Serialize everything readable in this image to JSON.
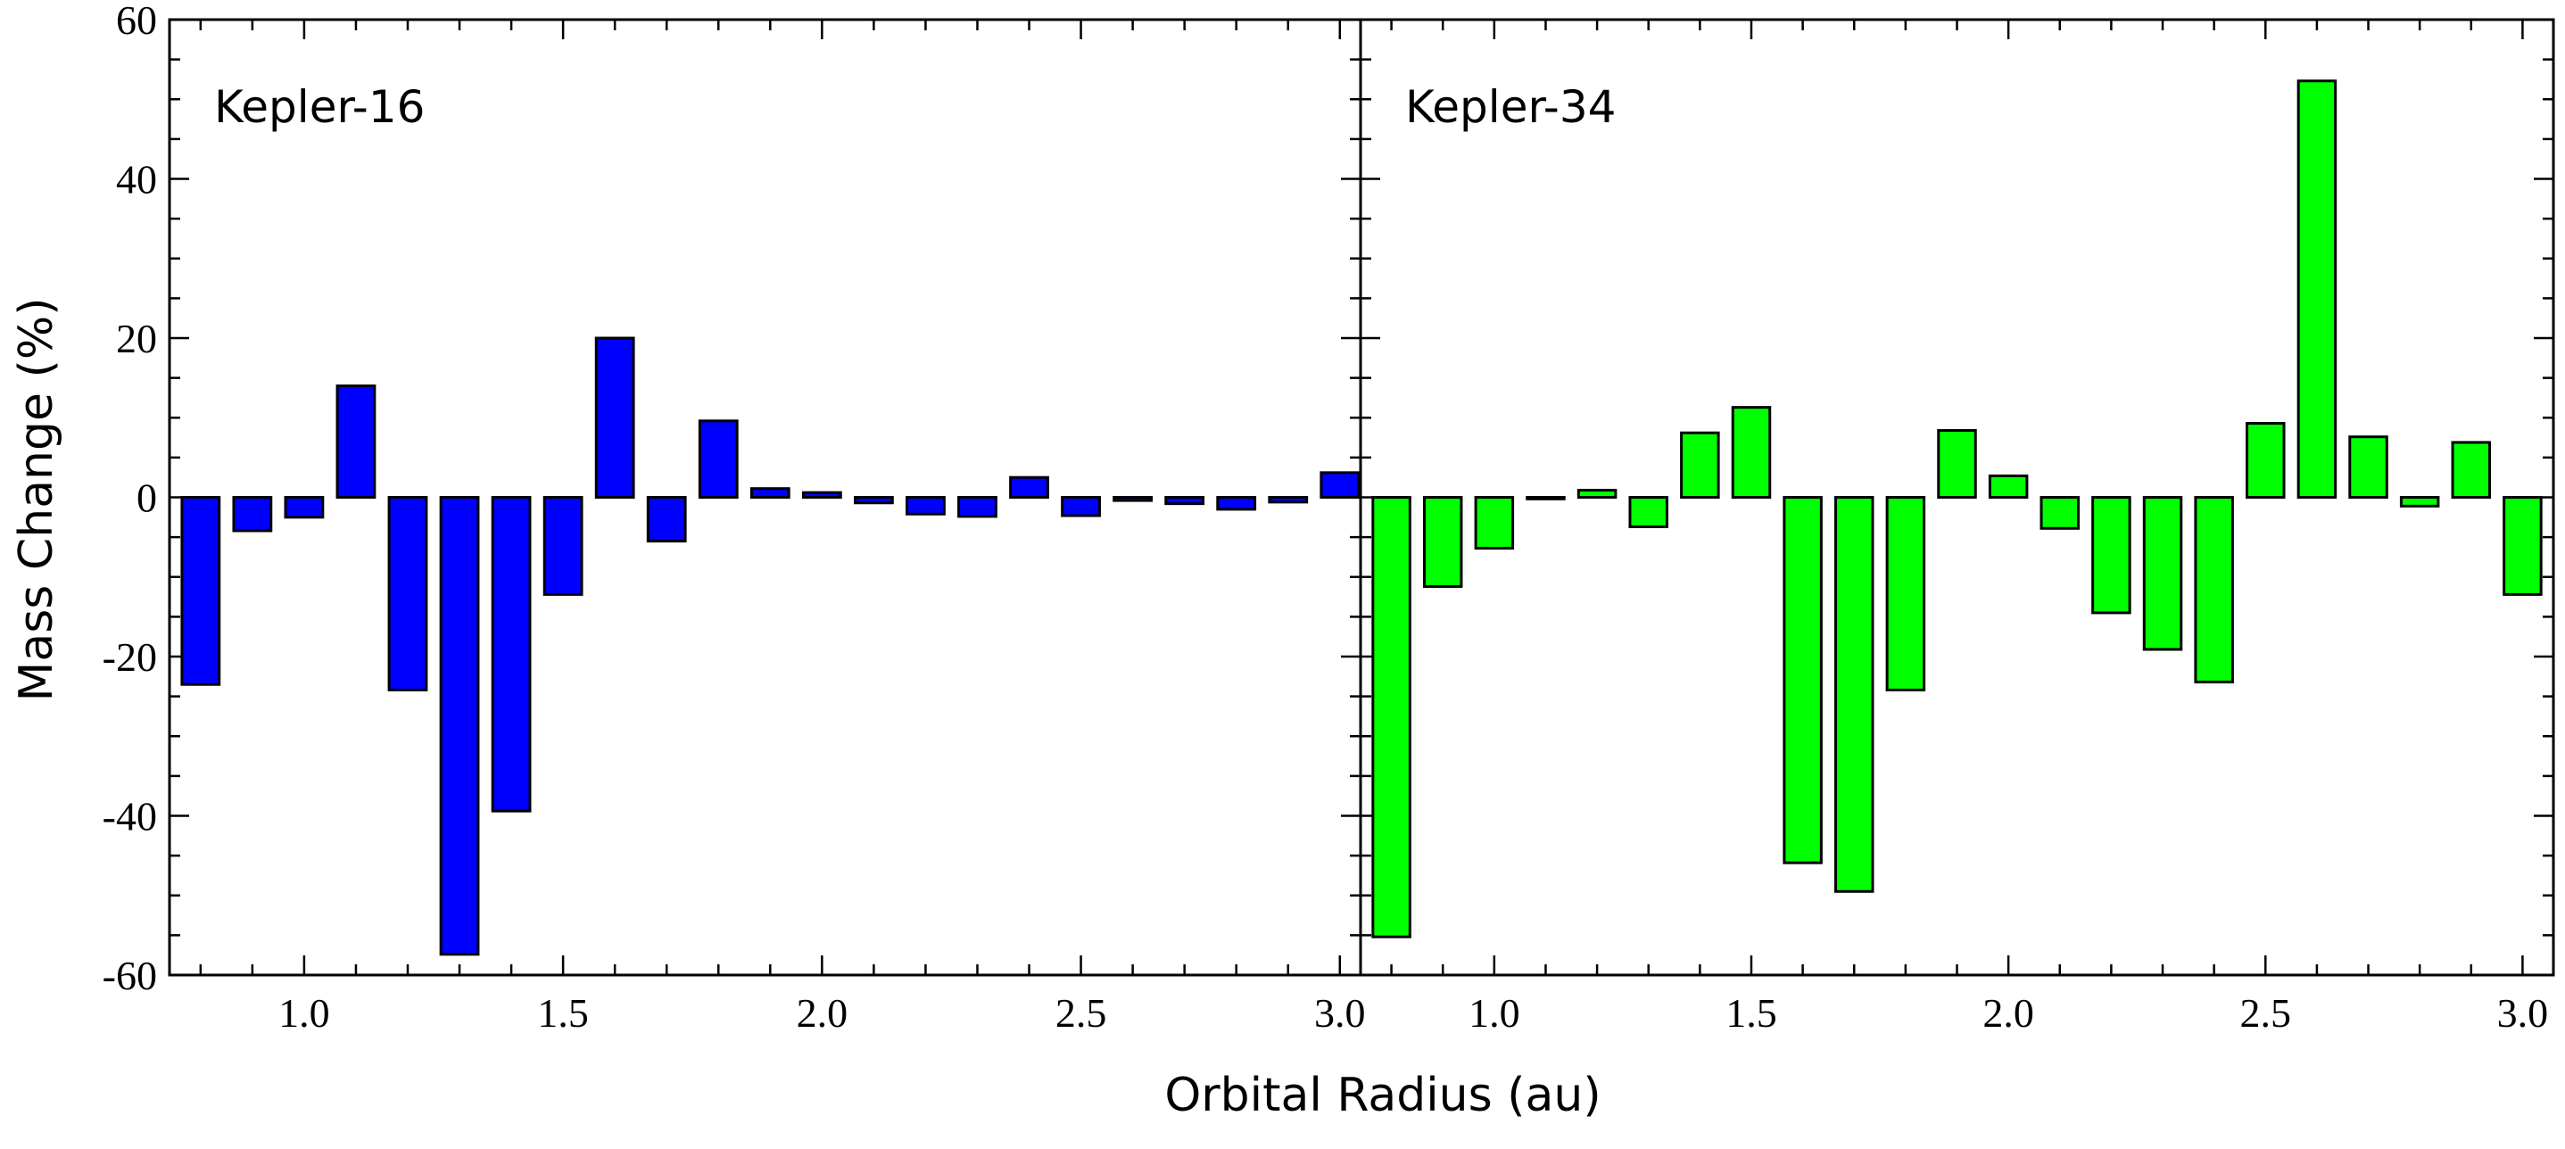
{
  "chart_data": [
    {
      "type": "bar",
      "title": "Kepler-16",
      "xlabel": "Orbital Radius (au)",
      "ylabel": "Mass Change (%)",
      "xlim": [
        0.74,
        3.04
      ],
      "ylim": [
        -60,
        60
      ],
      "xticks": [
        "1.0",
        "1.5",
        "2.0",
        "2.5",
        "3.0"
      ],
      "yticks": [
        "60",
        "40",
        "20",
        "0",
        "-20",
        "-40",
        "-60"
      ],
      "bar_color": "#0000ff",
      "x": [
        0.8,
        0.9,
        1.0,
        1.1,
        1.2,
        1.3,
        1.4,
        1.5,
        1.6,
        1.7,
        1.8,
        1.9,
        2.0,
        2.1,
        2.2,
        2.3,
        2.4,
        2.5,
        2.6,
        2.7,
        2.8,
        2.9,
        3.0
      ],
      "values": [
        -23.5,
        -4.2,
        -2.5,
        14,
        -24.2,
        -57.4,
        -39.4,
        -12.2,
        20,
        -5.5,
        9.6,
        1.1,
        0.6,
        -0.7,
        -2.1,
        -2.4,
        2.5,
        -2.3,
        -0.4,
        -0.8,
        -1.5,
        -0.6,
        3.1
      ]
    },
    {
      "type": "bar",
      "title": "Kepler-34",
      "xlabel": "Orbital Radius (au)",
      "ylabel": "Mass Change (%)",
      "xlim": [
        0.74,
        3.06
      ],
      "ylim": [
        -60,
        60
      ],
      "xticks": [
        "1.0",
        "1.5",
        "2.0",
        "2.5",
        "3.0"
      ],
      "yticks": [
        "60",
        "40",
        "20",
        "0",
        "-20",
        "-40",
        "-60"
      ],
      "bar_color": "#00ff00",
      "x": [
        0.8,
        0.9,
        1.0,
        1.1,
        1.2,
        1.3,
        1.4,
        1.5,
        1.6,
        1.7,
        1.8,
        1.9,
        2.0,
        2.1,
        2.2,
        2.3,
        2.4,
        2.5,
        2.6,
        2.7,
        2.8,
        2.9,
        3.0
      ],
      "values": [
        -55.2,
        -11.2,
        -6.4,
        -0.2,
        0.9,
        -3.7,
        8.1,
        11.3,
        -45.9,
        -49.5,
        -24.2,
        8.4,
        2.7,
        -3.9,
        -14.5,
        -19.1,
        -23.2,
        9.3,
        52.3,
        7.6,
        -1.1,
        6.9,
        -12.2
      ]
    }
  ]
}
